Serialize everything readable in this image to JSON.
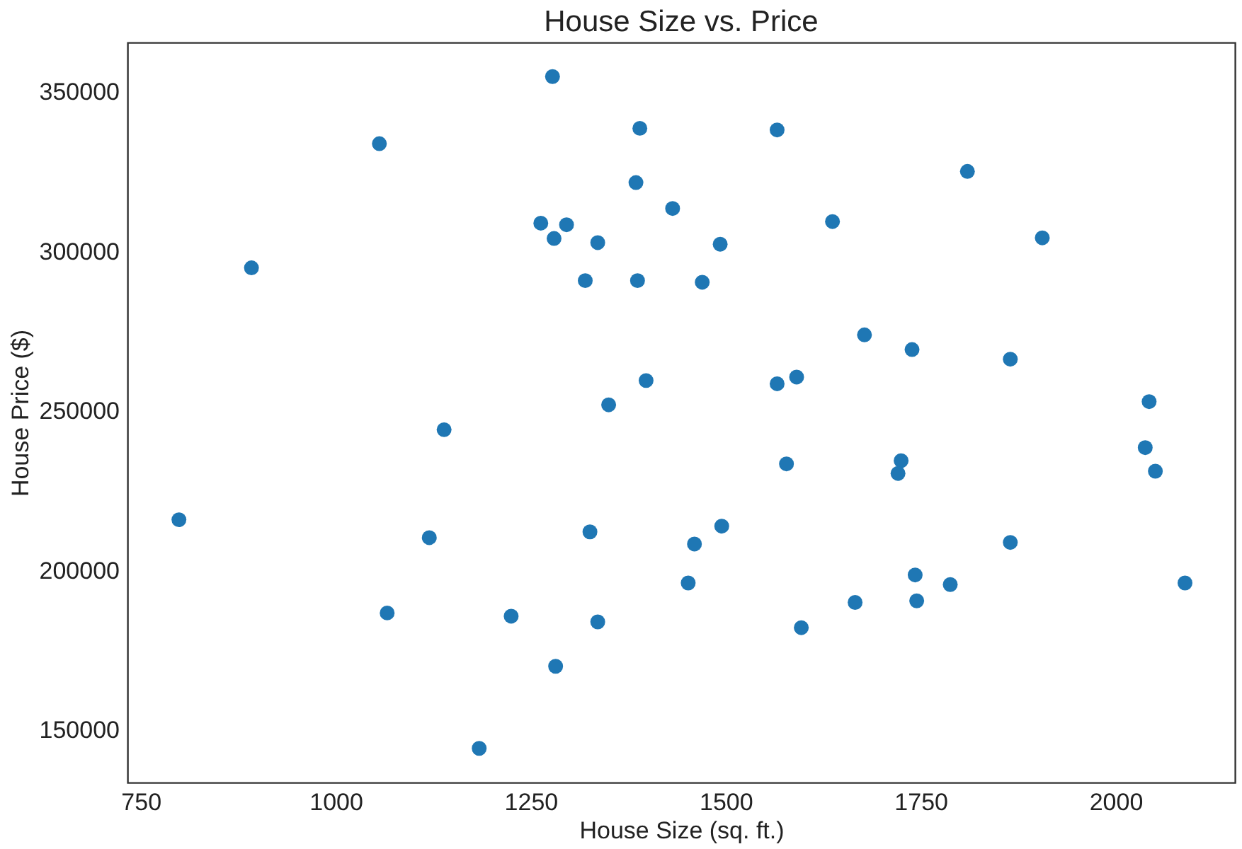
{
  "chart_data": {
    "type": "scatter",
    "title": "House Size vs. Price",
    "xlabel": "House Size (sq. ft.)",
    "ylabel": "House Price ($)",
    "x": [
      1278,
      1056,
      1390,
      1566,
      1810,
      1385,
      1432,
      1263,
      1296,
      1280,
      1336,
      1493,
      1637,
      1906,
      892,
      1320,
      1387,
      1470,
      1678,
      1739,
      1865,
      1398,
      1566,
      1591,
      1350,
      2043,
      1139,
      1578,
      1725,
      1721,
      2038,
      2051,
      799,
      1120,
      1326,
      1495,
      1460,
      1865,
      1452,
      1743,
      1788,
      2089,
      1666,
      1745,
      1066,
      1225,
      1336,
      1597,
      1282,
      1184
    ],
    "series": [
      {
        "color": "#1f77b4",
        "values": [
          354800,
          333800,
          338600,
          338100,
          325100,
          321600,
          313500,
          308900,
          308400,
          304100,
          302800,
          302300,
          309400,
          304300,
          294900,
          290900,
          290900,
          290400,
          273900,
          269300,
          266300,
          259600,
          258600,
          260700,
          252000,
          253000,
          244200,
          233500,
          234500,
          230500,
          238600,
          231200,
          216000,
          210400,
          212200,
          214000,
          208400,
          208900,
          196200,
          198700,
          195700,
          196200,
          190100,
          190600,
          186800,
          185800,
          184000,
          182200,
          170100,
          144400
        ]
      }
    ],
    "xlim": [
      733,
      2153
    ],
    "ylim": [
      133700,
      365500
    ],
    "xticks": [
      750,
      1000,
      1250,
      1500,
      1750,
      2000
    ],
    "yticks": [
      150000,
      200000,
      250000,
      300000,
      350000
    ],
    "grid": false,
    "marker": "circle"
  }
}
